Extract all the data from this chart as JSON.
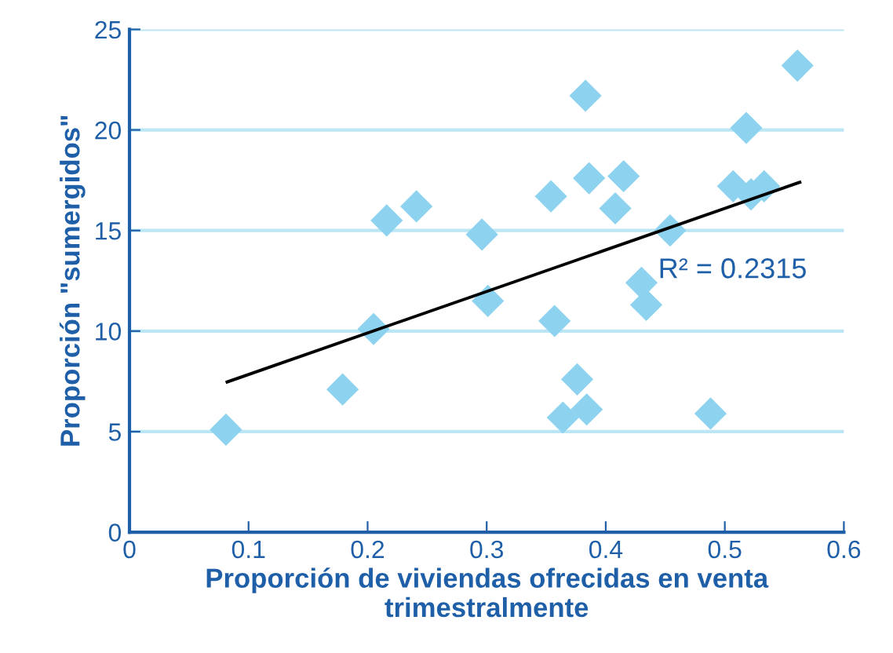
{
  "chart_data": {
    "type": "scatter",
    "xlabel": "Proporción de viviendas ofrecidas en venta\ntrimestralmente",
    "ylabel": "Proporción \"sumergidos\"",
    "xlim": [
      0,
      0.6
    ],
    "xticks": [
      0,
      0.1,
      0.2,
      0.3,
      0.4,
      0.5,
      0.6
    ],
    "ylim": [
      0,
      25
    ],
    "yticks": [
      0,
      5,
      10,
      15,
      20,
      25
    ],
    "grid": "y",
    "annotations": [
      "R² = 0.2315"
    ],
    "series": [
      {
        "marker": "diamond",
        "color": "#8dd3f0",
        "x": [
          0.081,
          0.179,
          0.205,
          0.216,
          0.241,
          0.296,
          0.301,
          0.354,
          0.383,
          0.386,
          0.415,
          0.408,
          0.357,
          0.454,
          0.43,
          0.434,
          0.376,
          0.364,
          0.384,
          0.488,
          0.507,
          0.522,
          0.533,
          0.518,
          0.561
        ],
        "values": [
          5.1,
          7.1,
          10.1,
          15.5,
          16.2,
          14.8,
          11.5,
          16.7,
          21.7,
          17.6,
          17.7,
          16.1,
          10.5,
          15.0,
          12.4,
          11.3,
          7.6,
          5.7,
          6.1,
          5.9,
          17.2,
          16.8,
          17.2,
          20.1,
          23.2
        ]
      },
      {
        "type": "line",
        "marker": "none",
        "color": "#000000",
        "x": [
          0.082,
          0.563
        ],
        "values": [
          7.47,
          17.4
        ]
      }
    ]
  }
}
